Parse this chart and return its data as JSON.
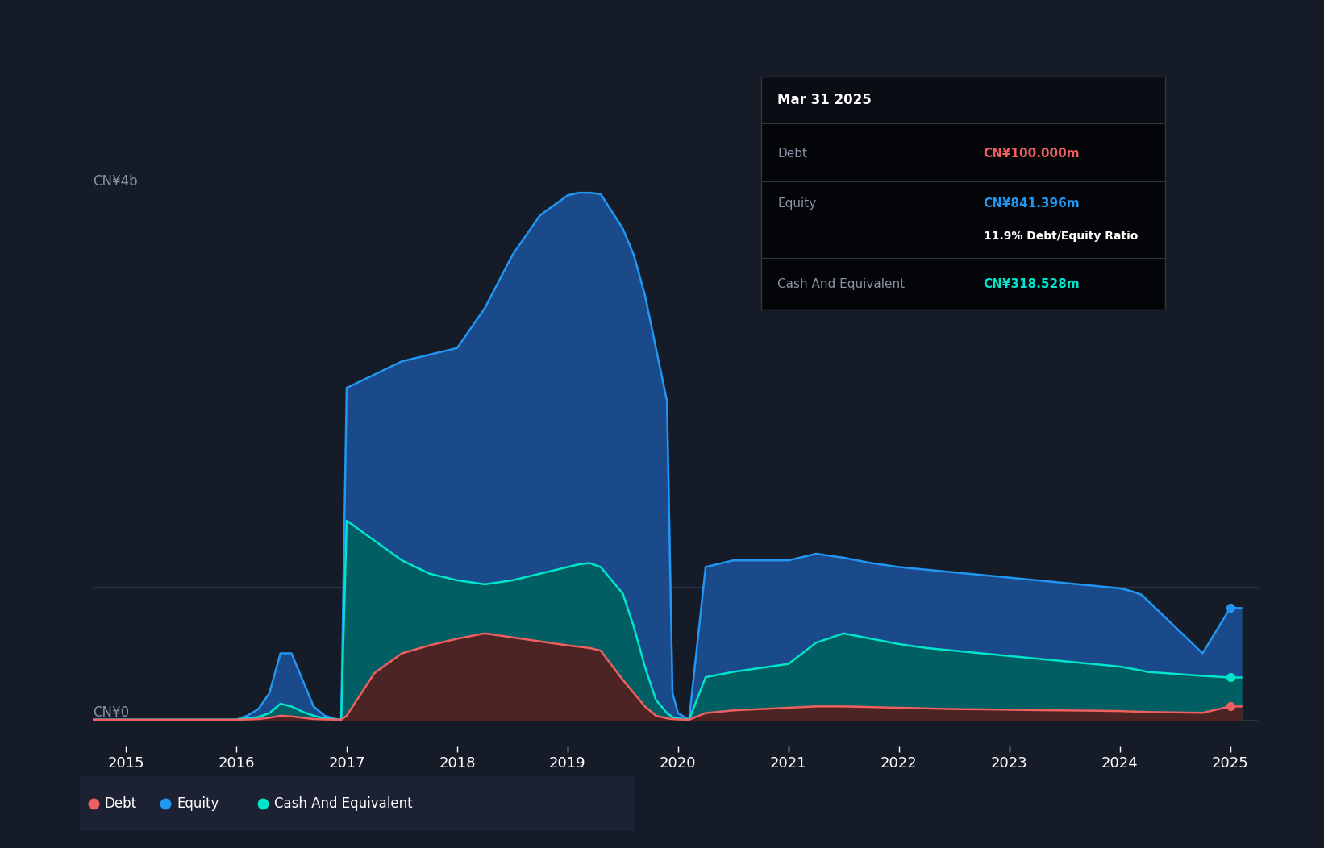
{
  "background_color": "#161c27",
  "plot_bg_color": "#161c27",
  "grid_color": "#2a3347",
  "text_color": "#ffffff",
  "axis_label_color": "#8892a4",
  "y_label_top": "CN¥4b",
  "y_label_zero": "CN¥0",
  "x_ticks": [
    2015,
    2016,
    2017,
    2018,
    2019,
    2020,
    2021,
    2022,
    2023,
    2024,
    2025
  ],
  "equity_color": "#2196f3",
  "equity_fill_top": "#1a4a8a",
  "equity_fill_bot": "#0d2040",
  "debt_color": "#f06060",
  "debt_fill": "#5a1a1a",
  "cash_color": "#00e5cc",
  "cash_fill_top": "#006060",
  "cash_fill_bot": "#002a2a",
  "tooltip_bg": "#050505",
  "tooltip_title": "Mar 31 2025",
  "tooltip_debt_label": "Debt",
  "tooltip_debt_value": "CN¥100.000m",
  "tooltip_equity_label": "Equity",
  "tooltip_equity_value": "CN¥841.396m",
  "tooltip_ratio": "11.9% Debt/Equity Ratio",
  "tooltip_cash_label": "Cash And Equivalent",
  "tooltip_cash_value": "CN¥318.528m",
  "legend_debt": "Debt",
  "legend_equity": "Equity",
  "legend_cash": "Cash And Equivalent",
  "dates": [
    2014.7,
    2015.0,
    2015.25,
    2015.5,
    2015.75,
    2015.95,
    2016.0,
    2016.1,
    2016.2,
    2016.3,
    2016.4,
    2016.5,
    2016.6,
    2016.7,
    2016.8,
    2016.9,
    2016.95,
    2017.0,
    2017.25,
    2017.5,
    2017.75,
    2018.0,
    2018.25,
    2018.5,
    2018.75,
    2019.0,
    2019.1,
    2019.2,
    2019.3,
    2019.5,
    2019.6,
    2019.7,
    2019.8,
    2019.9,
    2019.95,
    2020.0,
    2020.1,
    2020.25,
    2020.5,
    2020.75,
    2021.0,
    2021.25,
    2021.5,
    2021.75,
    2022.0,
    2022.25,
    2022.5,
    2022.75,
    2023.0,
    2023.25,
    2023.5,
    2023.75,
    2024.0,
    2024.1,
    2024.2,
    2024.25,
    2024.5,
    2024.75,
    2025.0,
    2025.1
  ],
  "equity": [
    0,
    0,
    0,
    0,
    0,
    0,
    0,
    30,
    80,
    200,
    500,
    500,
    300,
    100,
    30,
    5,
    0,
    2500,
    2600,
    2700,
    2750,
    2800,
    3100,
    3500,
    3800,
    3950,
    3970,
    3970,
    3960,
    3700,
    3500,
    3200,
    2800,
    2400,
    200,
    50,
    0,
    1150,
    1200,
    1200,
    1200,
    1250,
    1220,
    1180,
    1150,
    1130,
    1110,
    1090,
    1070,
    1050,
    1030,
    1010,
    990,
    970,
    940,
    900,
    700,
    500,
    841,
    841
  ],
  "cash": [
    0,
    0,
    0,
    0,
    0,
    0,
    0,
    10,
    20,
    50,
    120,
    100,
    60,
    30,
    10,
    2,
    0,
    1500,
    1350,
    1200,
    1100,
    1050,
    1020,
    1050,
    1100,
    1150,
    1170,
    1180,
    1150,
    950,
    700,
    400,
    150,
    50,
    20,
    10,
    0,
    320,
    360,
    390,
    420,
    580,
    650,
    610,
    570,
    540,
    520,
    500,
    480,
    460,
    440,
    420,
    400,
    385,
    370,
    360,
    345,
    330,
    318,
    318
  ],
  "debt": [
    0,
    0,
    0,
    0,
    0,
    0,
    0,
    2,
    5,
    15,
    30,
    25,
    15,
    5,
    2,
    1,
    0,
    30,
    350,
    500,
    560,
    610,
    650,
    620,
    590,
    560,
    550,
    540,
    520,
    300,
    200,
    100,
    30,
    10,
    5,
    2,
    0,
    50,
    70,
    80,
    90,
    100,
    100,
    95,
    90,
    85,
    80,
    78,
    75,
    72,
    70,
    68,
    65,
    62,
    60,
    58,
    55,
    52,
    100,
    100
  ]
}
